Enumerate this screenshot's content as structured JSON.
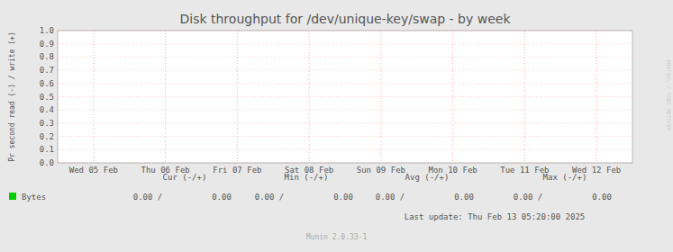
{
  "chart_data": {
    "type": "line",
    "title": "Disk throughput for /dev/unique-key/swap - by week",
    "y_label": "Pr second read (-) / write (+)",
    "categories": [
      "Wed 05 Feb",
      "Thu 06 Feb",
      "Fri 07 Feb",
      "Sat 08 Feb",
      "Sun 09 Feb",
      "Mon 10 Feb",
      "Tue 11 Feb",
      "Wed 12 Feb"
    ],
    "series": [
      {
        "name": "Bytes",
        "color": "#00cc00",
        "values": [
          null,
          null,
          null,
          null,
          null,
          null,
          null,
          null
        ]
      }
    ],
    "ylim": [
      0,
      1
    ],
    "yticks": [
      {
        "value": 0,
        "label": "0.0"
      },
      0.1,
      0.2,
      0.3,
      0.4,
      0.5,
      0.6,
      0.7,
      0.8,
      0.9,
      {
        "value": 1,
        "label": "1.0"
      }
    ],
    "grid": true,
    "legend": "bottom",
    "annotations": [
      "Cur  (-/+)",
      "Min  (-/+)",
      "Avg  (-/+)",
      "Max  (-/+)",
      "0.00 /",
      "0.00",
      "0.00 /",
      "0.00",
      "0.00 /",
      "0.00",
      "0.00 /",
      "0.00",
      "Last update:  Thu Feb 13  05:20:00  2025",
      "Munin 2.0.33-1",
      "RRDTOOL / TOBI OETIKER"
    ]
  }
}
